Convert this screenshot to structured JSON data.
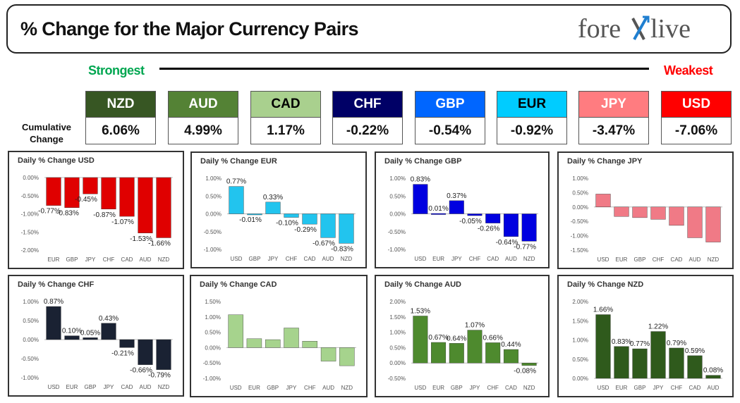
{
  "header": {
    "title": "% Change for the Major Currency Pairs",
    "logo_text_1": "fore",
    "logo_text_2": "live"
  },
  "labels": {
    "strongest": "Strongest",
    "weakest": "Weakest",
    "cumulative": [
      "Cumulative",
      "Change"
    ]
  },
  "cumulative": [
    {
      "code": "NZD",
      "value": "6.06%",
      "bg": "#375623",
      "fg": "#ffffff"
    },
    {
      "code": "AUD",
      "value": "4.99%",
      "bg": "#548235",
      "fg": "#ffffff"
    },
    {
      "code": "CAD",
      "value": "1.17%",
      "bg": "#a9d08e",
      "fg": "#000000"
    },
    {
      "code": "CHF",
      "value": "-0.22%",
      "bg": "#000066",
      "fg": "#ffffff"
    },
    {
      "code": "GBP",
      "value": "-0.54%",
      "bg": "#0066ff",
      "fg": "#ffffff"
    },
    {
      "code": "EUR",
      "value": "-0.92%",
      "bg": "#00ccff",
      "fg": "#000000"
    },
    {
      "code": "JPY",
      "value": "-3.47%",
      "bg": "#ff7c80",
      "fg": "#ffffff"
    },
    {
      "code": "USD",
      "value": "-7.06%",
      "bg": "#ff0000",
      "fg": "#ffffff"
    }
  ],
  "chart_data": [
    {
      "type": "bar",
      "title": "Daily % Change USD",
      "color": "#e00000",
      "categories": [
        "EUR",
        "GBP",
        "JPY",
        "CHF",
        "CAD",
        "AUD",
        "NZD"
      ],
      "values": [
        -0.77,
        -0.83,
        -0.45,
        -0.87,
        -1.07,
        -1.53,
        -1.66
      ],
      "labels": [
        "-0.77%",
        "-0.83%",
        "-0.45%",
        "-0.87%",
        "-1.07%",
        "-1.53%",
        "-1.66%"
      ],
      "ylim": [
        -2.0,
        0.0
      ],
      "yticks": [
        "0.00%",
        "-0.50%",
        "-1.00%",
        "-1.50%",
        "-2.00%"
      ],
      "ytick_values": [
        0.0,
        -0.5,
        -1.0,
        -1.5,
        -2.0
      ]
    },
    {
      "type": "bar",
      "title": "Daily % Change EUR",
      "color": "#22c4ee",
      "categories": [
        "USD",
        "GBP",
        "JPY",
        "CHF",
        "CAD",
        "AUD",
        "NZD"
      ],
      "values": [
        0.77,
        -0.01,
        0.33,
        -0.1,
        -0.29,
        -0.67,
        -0.83
      ],
      "labels": [
        "0.77%",
        "-0.01%",
        "0.33%",
        "-0.10%",
        "-0.29%",
        "-0.67%",
        "-0.83%"
      ],
      "ylim": [
        -1.0,
        1.0
      ],
      "yticks": [
        "1.00%",
        "0.50%",
        "0.00%",
        "-0.50%",
        "-1.00%"
      ],
      "ytick_values": [
        1.0,
        0.5,
        0.0,
        -0.5,
        -1.0
      ]
    },
    {
      "type": "bar",
      "title": "Daily % Change GBP",
      "color": "#0000e0",
      "categories": [
        "USD",
        "EUR",
        "JPY",
        "CHF",
        "CAD",
        "AUD",
        "NZD"
      ],
      "values": [
        0.83,
        0.01,
        0.37,
        -0.05,
        -0.26,
        -0.64,
        -0.77
      ],
      "labels": [
        "0.83%",
        "0.01%",
        "0.37%",
        "-0.05%",
        "-0.26%",
        "-0.64%",
        "-0.77%"
      ],
      "ylim": [
        -1.0,
        1.0
      ],
      "yticks": [
        "1.00%",
        "0.50%",
        "0.00%",
        "-0.50%",
        "-1.00%"
      ],
      "ytick_values": [
        1.0,
        0.5,
        0.0,
        -0.5,
        -1.0
      ]
    },
    {
      "type": "bar",
      "title": "Daily % Change JPY",
      "color": "#f07a86",
      "categories": [
        "USD",
        "EUR",
        "GBP",
        "CHF",
        "CAD",
        "AUD",
        "NZD"
      ],
      "values": [
        0.45,
        -0.33,
        -0.37,
        -0.43,
        -0.64,
        -1.07,
        -1.22
      ],
      "labels": [],
      "ylim": [
        -1.5,
        1.0
      ],
      "yticks": [
        "1.00%",
        "0.50%",
        "0.00%",
        "-0.50%",
        "-1.00%",
        "-1.50%"
      ],
      "ytick_values": [
        1.0,
        0.5,
        0.0,
        -0.5,
        -1.0,
        -1.5
      ]
    },
    {
      "type": "bar",
      "title": "Daily % Change CHF",
      "color": "#1a2233",
      "categories": [
        "USD",
        "EUR",
        "GBP",
        "JPY",
        "CAD",
        "AUD",
        "NZD"
      ],
      "values": [
        0.87,
        0.1,
        0.05,
        0.43,
        -0.21,
        -0.66,
        -0.79
      ],
      "labels": [
        "0.87%",
        "0.10%",
        "0.05%",
        "0.43%",
        "-0.21%",
        "-0.66%",
        "-0.79%"
      ],
      "ylim": [
        -1.0,
        1.0
      ],
      "yticks": [
        "1.00%",
        "0.50%",
        "0.00%",
        "-0.50%",
        "-1.00%"
      ],
      "ytick_values": [
        1.0,
        0.5,
        0.0,
        -0.5,
        -1.0
      ]
    },
    {
      "type": "bar",
      "title": "Daily % Change CAD",
      "color": "#a6d38d",
      "categories": [
        "USD",
        "EUR",
        "GBP",
        "JPY",
        "CHF",
        "AUD",
        "NZD"
      ],
      "values": [
        1.07,
        0.29,
        0.26,
        0.64,
        0.21,
        -0.44,
        -0.59
      ],
      "labels": [],
      "ylim": [
        -1.0,
        1.5
      ],
      "yticks": [
        "1.50%",
        "1.00%",
        "0.50%",
        "0.00%",
        "-0.50%",
        "-1.00%"
      ],
      "ytick_values": [
        1.5,
        1.0,
        0.5,
        0.0,
        -0.5,
        -1.0
      ]
    },
    {
      "type": "bar",
      "title": "Daily % Change AUD",
      "color": "#4e8a2e",
      "categories": [
        "USD",
        "EUR",
        "GBP",
        "JPY",
        "CHF",
        "CAD",
        "NZD"
      ],
      "values": [
        1.53,
        0.67,
        0.64,
        1.07,
        0.66,
        0.44,
        -0.08
      ],
      "labels": [
        "1.53%",
        "0.67%",
        "0.64%",
        "1.07%",
        "0.66%",
        "0.44%",
        "-0.08%"
      ],
      "ylim": [
        0.0,
        2.0
      ],
      "yticks": [
        "2.00%",
        "1.50%",
        "1.00%",
        "0.50%",
        "0.00%",
        "-0.50%"
      ],
      "ytick_values": [
        2.0,
        1.5,
        1.0,
        0.5,
        0.0,
        -0.5
      ]
    },
    {
      "type": "bar",
      "title": "Daily % Change NZD",
      "color": "#2f5a1c",
      "categories": [
        "USD",
        "EUR",
        "GBP",
        "JPY",
        "CHF",
        "CAD",
        "AUD"
      ],
      "values": [
        1.66,
        0.83,
        0.77,
        1.22,
        0.79,
        0.59,
        0.08
      ],
      "labels": [
        "1.66%",
        "0.83%",
        "0.77%",
        "1.22%",
        "0.79%",
        "0.59%",
        "0.08%"
      ],
      "ylim": [
        0.0,
        2.0
      ],
      "yticks": [
        "2.00%",
        "1.50%",
        "1.00%",
        "0.50%",
        "0.00%"
      ],
      "ytick_values": [
        2.0,
        1.5,
        1.0,
        0.5,
        0.0
      ]
    }
  ]
}
